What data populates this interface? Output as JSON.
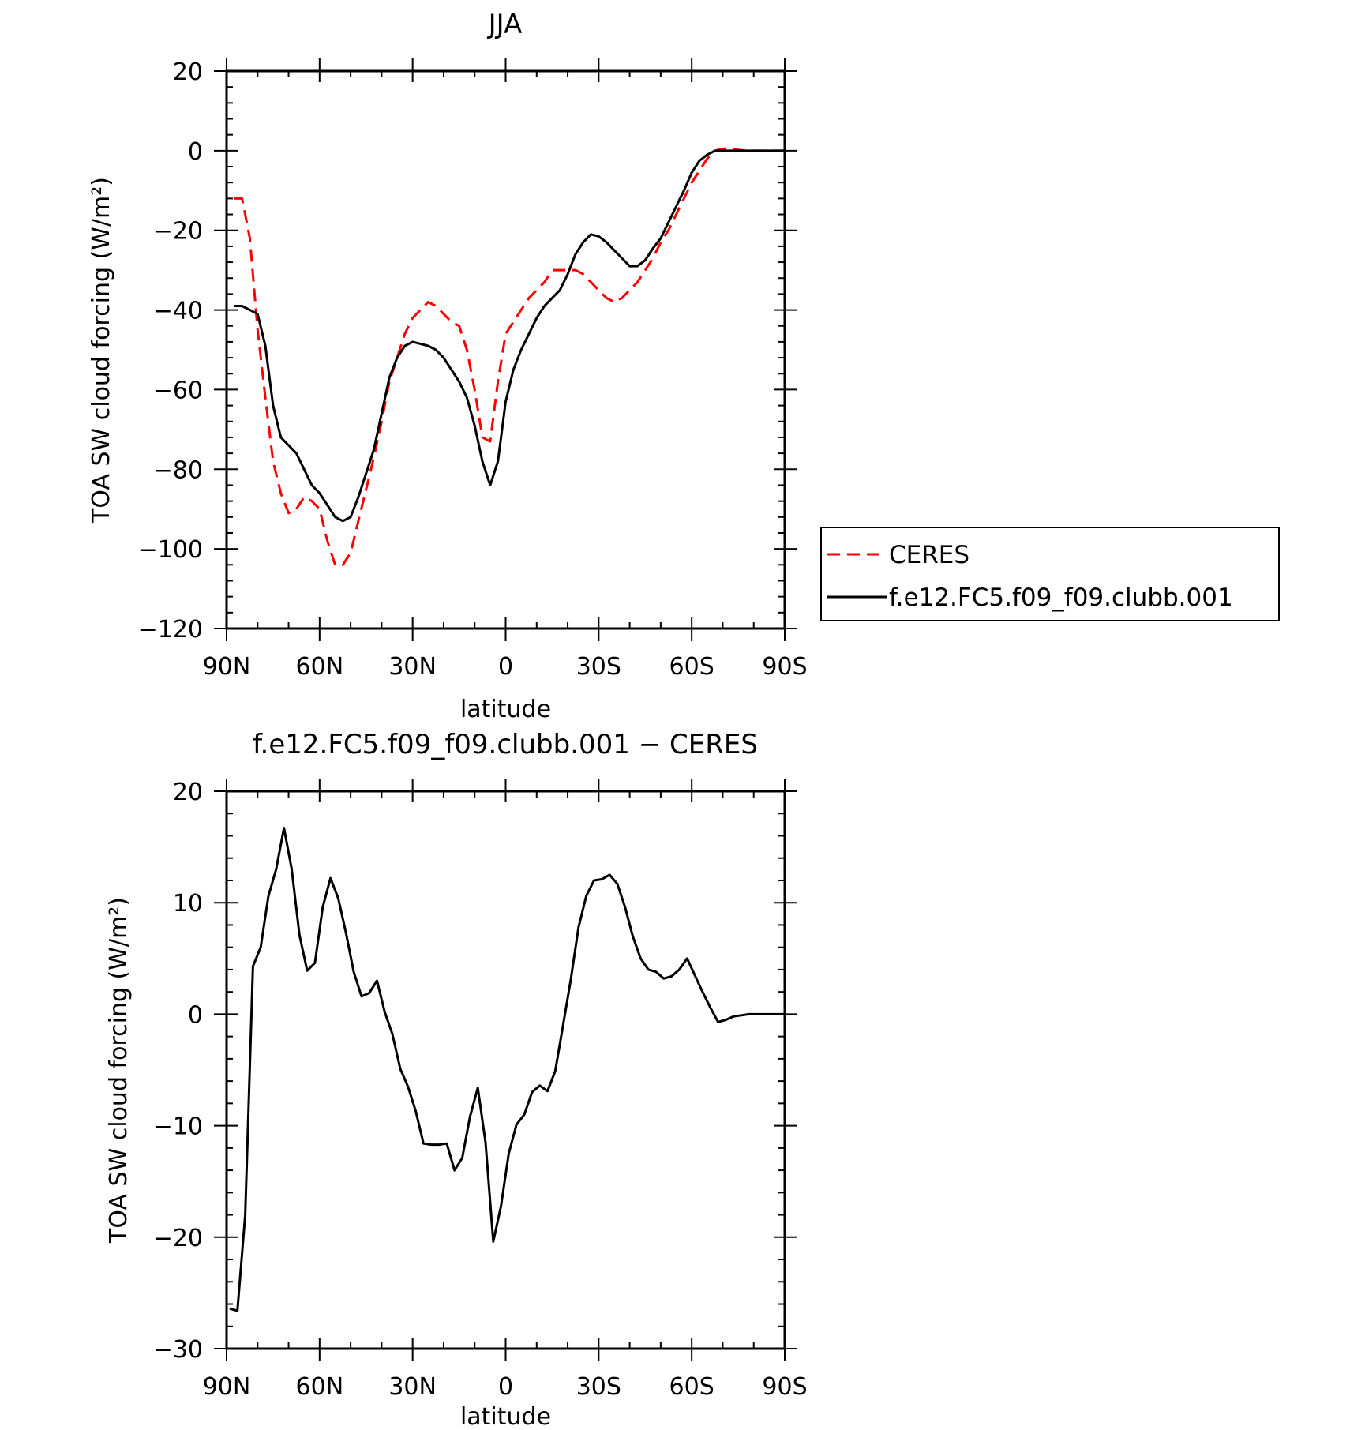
{
  "chart_data": [
    {
      "type": "line",
      "title": "JJA",
      "xlabel": "latitude",
      "ylabel": "TOA SW cloud forcing (W/m²)",
      "xlim": [
        90,
        -90
      ],
      "ylim": [
        -120,
        20
      ],
      "x_ticks": [
        90,
        60,
        30,
        0,
        -30,
        -60,
        -90
      ],
      "x_tick_labels": [
        "90N",
        "60N",
        "30N",
        "0",
        "30S",
        "60S",
        "90S"
      ],
      "y_ticks": [
        20,
        0,
        -20,
        -40,
        -60,
        -80,
        -100,
        -120
      ],
      "y_tick_labels": [
        "20",
        "0",
        "−20",
        "−40",
        "−60",
        "−80",
        "−100",
        "−120"
      ],
      "legend_position": "right",
      "series": [
        {
          "name": "CERES",
          "color": "#ff0000",
          "dash": "dashed",
          "x": [
            87.5,
            85,
            82.5,
            80,
            77.5,
            75,
            72.5,
            70,
            67.5,
            65,
            62.5,
            60,
            57.5,
            55,
            52.5,
            50,
            47.5,
            45,
            42.5,
            40,
            37.5,
            35,
            32.5,
            30,
            27.5,
            25,
            22.5,
            20,
            17.5,
            15,
            12.5,
            10,
            7.5,
            5,
            2.5,
            0,
            -2.5,
            -5,
            -7.5,
            -10,
            -12.5,
            -15,
            -17.5,
            -20,
            -22.5,
            -25,
            -27.5,
            -30,
            -32.5,
            -35,
            -37.5,
            -40,
            -42.5,
            -45,
            -47.5,
            -50,
            -52.5,
            -55,
            -57.5,
            -60,
            -62.5,
            -65,
            -67.5,
            -70,
            -72.5,
            -75,
            -77.5,
            -80,
            -82.5,
            -85,
            -87.5,
            -90
          ],
          "y": [
            -12,
            -12,
            -22,
            -45,
            -62,
            -78,
            -86,
            -91,
            -90,
            -87,
            -88,
            -90,
            -98,
            -104,
            -104,
            -101,
            -93,
            -85,
            -77,
            -68,
            -58,
            -52,
            -46,
            -42,
            -40,
            -38,
            -39,
            -41,
            -43,
            -44,
            -50,
            -60,
            -72,
            -73,
            -58,
            -46,
            -43,
            -40,
            -37,
            -35,
            -33,
            -30,
            -30,
            -30,
            -30,
            -31,
            -33,
            -35,
            -37,
            -38,
            -37,
            -35,
            -33,
            -30,
            -27,
            -23,
            -20,
            -16,
            -12,
            -8,
            -5,
            -2,
            0,
            0.5,
            0.5,
            0.2,
            0,
            0,
            0,
            0,
            0,
            0
          ]
        },
        {
          "name": "f.e12.FC5.f09_f09.clubb.001",
          "color": "#000000",
          "dash": "solid",
          "x": [
            87.5,
            85,
            82.5,
            80,
            77.5,
            75,
            72.5,
            70,
            67.5,
            65,
            62.5,
            60,
            57.5,
            55,
            52.5,
            50,
            47.5,
            45,
            42.5,
            40,
            37.5,
            35,
            32.5,
            30,
            27.5,
            25,
            22.5,
            20,
            17.5,
            15,
            12.5,
            10,
            7.5,
            5,
            2.5,
            0,
            -2.5,
            -5,
            -7.5,
            -10,
            -12.5,
            -15,
            -17.5,
            -20,
            -22.5,
            -25,
            -27.5,
            -30,
            -32.5,
            -35,
            -37.5,
            -40,
            -42.5,
            -45,
            -47.5,
            -50,
            -52.5,
            -55,
            -57.5,
            -60,
            -62.5,
            -65,
            -67.5,
            -70,
            -72.5,
            -75,
            -77.5,
            -80,
            -82.5,
            -85,
            -87.5,
            -90
          ],
          "y": [
            -39,
            -39,
            -40,
            -41,
            -49,
            -64,
            -72,
            -74,
            -76,
            -80,
            -84,
            -86,
            -89,
            -92,
            -93,
            -92,
            -87,
            -81,
            -75,
            -66,
            -57,
            -52,
            -49,
            -48,
            -48.5,
            -49,
            -50,
            -52,
            -55,
            -58,
            -62,
            -69,
            -78,
            -84,
            -78,
            -63,
            -55,
            -50,
            -46,
            -42,
            -39,
            -37,
            -35,
            -31,
            -26,
            -23,
            -21,
            -21.5,
            -23,
            -25,
            -27,
            -29,
            -29,
            -27.5,
            -24.5,
            -22,
            -18,
            -14,
            -10,
            -5.5,
            -2.5,
            -1,
            0,
            0,
            0,
            0,
            0,
            0,
            0,
            0,
            0,
            0
          ]
        }
      ]
    },
    {
      "type": "line",
      "title": "f.e12.FC5.f09_f09.clubb.001 − CERES",
      "xlabel": "latitude",
      "ylabel": "TOA SW cloud forcing (W/m²)",
      "xlim": [
        90,
        -90
      ],
      "ylim": [
        -30,
        20
      ],
      "x_ticks": [
        90,
        60,
        30,
        0,
        -30,
        -60,
        -90
      ],
      "x_tick_labels": [
        "90N",
        "60N",
        "30N",
        "0",
        "30S",
        "60S",
        "90S"
      ],
      "y_ticks": [
        20,
        10,
        0,
        -10,
        -20,
        -30
      ],
      "y_tick_labels": [
        "20",
        "10",
        "0",
        "−10",
        "−20",
        "−30"
      ],
      "series": [
        {
          "color": "#000000",
          "dash": "solid",
          "x": [
            89,
            86.5,
            84,
            81.5,
            79,
            76.5,
            74,
            71.5,
            69,
            66.5,
            64,
            61.5,
            59,
            56.5,
            54,
            51.5,
            49,
            46.5,
            44,
            41.5,
            39,
            36.5,
            34,
            31.5,
            29,
            26.5,
            24,
            21.5,
            19,
            16.5,
            14,
            11.5,
            9,
            6.5,
            4,
            1.5,
            -1,
            -3.5,
            -6,
            -8.5,
            -11,
            -13.5,
            -16,
            -18.5,
            -21,
            -23.5,
            -26,
            -28.5,
            -31,
            -33.5,
            -36,
            -38.5,
            -41,
            -43.5,
            -46,
            -48.5,
            -51,
            -53.5,
            -56,
            -58.5,
            -61,
            -63.5,
            -66,
            -68.5,
            -71,
            -73.5,
            -76,
            -78.5,
            -81,
            -83.5,
            -86,
            -88.5,
            -90
          ],
          "y": [
            -26.4,
            -26.6,
            -18,
            4.3,
            6,
            10.6,
            13,
            16.7,
            13,
            7.1,
            3.9,
            4.6,
            9.6,
            12.2,
            10.4,
            7.3,
            3.8,
            1.6,
            1.9,
            3,
            0.2,
            -1.8,
            -4.9,
            -6.5,
            -8.7,
            -11.6,
            -11.7,
            -11.7,
            -11.6,
            -14,
            -12.9,
            -9.2,
            -6.6,
            -11.5,
            -20.4,
            -17.2,
            -12.5,
            -9.9,
            -9,
            -7,
            -6.4,
            -6.9,
            -5.1,
            -1,
            3.1,
            7.8,
            10.6,
            12,
            12.1,
            12.5,
            11.7,
            9.6,
            7,
            5,
            4,
            3.8,
            3.2,
            3.4,
            4,
            5,
            3.5,
            2,
            0.6,
            -0.7,
            -0.5,
            -0.2,
            -0.1,
            0,
            0,
            0,
            0,
            0,
            0
          ]
        }
      ]
    }
  ]
}
